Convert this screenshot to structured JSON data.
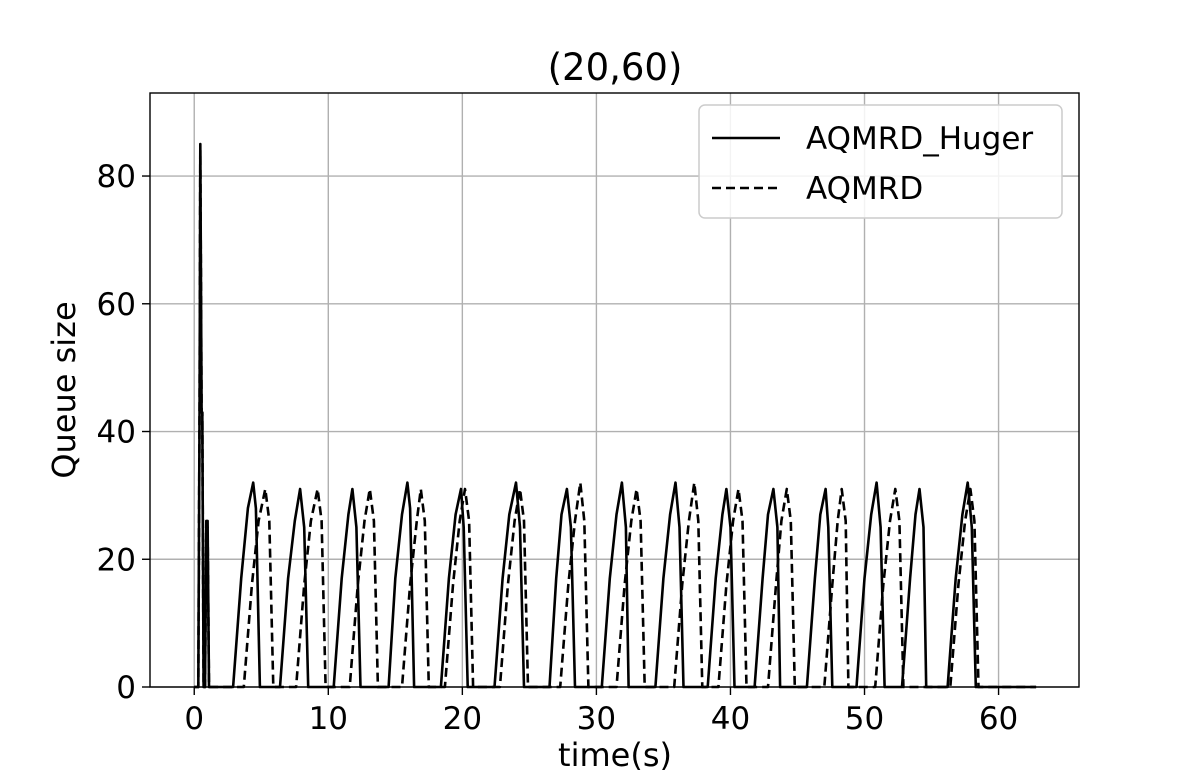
{
  "chart_data": {
    "type": "line",
    "title": "(20,60)",
    "xlabel": "time(s)",
    "ylabel": "Queue size",
    "xlim": [
      -3.3,
      66
    ],
    "ylim": [
      0,
      93
    ],
    "xticks": [
      0,
      10,
      20,
      30,
      40,
      50,
      60
    ],
    "yticks": [
      0,
      20,
      40,
      60,
      80
    ],
    "grid": true,
    "legend_position": "top-right",
    "series": [
      {
        "name": "AQMRD_Huger",
        "style": "solid",
        "color": "#000000",
        "x": [
          0,
          0.3,
          0.4,
          0.45,
          0.55,
          0.6,
          0.7,
          0.8,
          0.9,
          1.0,
          1.1,
          1.2,
          1.3,
          1.4,
          1.6,
          2.9,
          3.5,
          4.0,
          4.4,
          4.6,
          4.9,
          5.1,
          5.3,
          6.4,
          7.0,
          7.5,
          7.9,
          8.2,
          8.5,
          8.8,
          9.0,
          10.4,
          11.0,
          11.5,
          11.8,
          12.1,
          12.4,
          12.6,
          12.8,
          14.5,
          15.0,
          15.5,
          15.9,
          16.1,
          16.4,
          16.6,
          16.8,
          18.4,
          19.0,
          19.5,
          19.9,
          20.1,
          20.4,
          20.6,
          20.8,
          22.4,
          23.0,
          23.5,
          24.0,
          24.3,
          24.6,
          24.8,
          25.0,
          26.5,
          27.0,
          27.4,
          27.8,
          28.1,
          28.4,
          28.6,
          28.8,
          30.4,
          31.0,
          31.5,
          31.9,
          32.2,
          32.4,
          32.6,
          32.8,
          34.4,
          35.0,
          35.5,
          35.9,
          36.2,
          36.5,
          36.7,
          36.9,
          38.3,
          38.9,
          39.4,
          39.7,
          40.0,
          40.3,
          40.5,
          40.7,
          41.8,
          42.4,
          42.8,
          43.2,
          43.5,
          43.7,
          43.9,
          44.1,
          45.7,
          46.3,
          46.7,
          47.1,
          47.3,
          47.6,
          47.8,
          48.0,
          49.4,
          50.0,
          50.5,
          50.9,
          51.2,
          51.5,
          51.7,
          51.9,
          52.8,
          53.4,
          53.8,
          54.1,
          54.4,
          54.6,
          54.8,
          55.0,
          56.2,
          56.8,
          57.3,
          57.7,
          58.0,
          58.3,
          58.5,
          58.7,
          62.8
        ],
        "y": [
          0,
          0,
          45,
          85,
          43,
          43,
          0,
          0,
          26,
          26,
          0,
          0,
          0,
          0,
          0,
          0,
          17,
          28,
          32,
          28,
          0,
          0,
          0,
          0,
          17,
          26,
          31,
          25,
          0,
          0,
          0,
          0,
          17,
          27,
          31,
          25,
          0,
          0,
          0,
          0,
          17,
          27,
          32,
          28,
          0,
          0,
          0,
          0,
          17,
          27,
          31,
          25,
          0,
          0,
          0,
          0,
          17,
          27,
          32,
          25,
          0,
          0,
          0,
          0,
          17,
          27,
          31,
          25,
          0,
          0,
          0,
          0,
          17,
          27,
          32,
          25,
          0,
          0,
          0,
          0,
          17,
          27,
          32,
          25,
          0,
          0,
          0,
          0,
          17,
          27,
          31,
          25,
          0,
          0,
          0,
          0,
          17,
          27,
          31,
          25,
          0,
          0,
          0,
          0,
          17,
          27,
          31,
          25,
          0,
          0,
          0,
          0,
          17,
          27,
          32,
          25,
          0,
          0,
          0,
          0,
          17,
          27,
          31,
          25,
          0,
          0,
          0,
          0,
          17,
          27,
          32,
          25,
          0,
          0,
          0,
          0
        ]
      },
      {
        "name": "AQMRD",
        "style": "dashed",
        "color": "#000000",
        "x": [
          0,
          0.3,
          0.4,
          0.45,
          0.55,
          0.6,
          0.7,
          0.8,
          0.9,
          1.0,
          1.1,
          1.2,
          3.7,
          4.3,
          4.8,
          5.3,
          5.6,
          5.9,
          6.1,
          6.3,
          7.6,
          8.2,
          8.7,
          9.2,
          9.5,
          9.8,
          10.0,
          10.2,
          11.6,
          12.2,
          12.7,
          13.1,
          13.4,
          13.7,
          13.9,
          14.1,
          15.5,
          16.1,
          16.6,
          16.9,
          17.2,
          17.5,
          17.7,
          17.9,
          18.7,
          19.3,
          19.8,
          20.2,
          20.5,
          20.8,
          21.0,
          21.2,
          22.8,
          23.4,
          23.9,
          24.3,
          24.6,
          24.9,
          25.1,
          25.3,
          27.3,
          27.9,
          28.4,
          28.8,
          29.1,
          29.4,
          29.6,
          29.8,
          31.5,
          32.1,
          32.6,
          33.0,
          33.3,
          33.6,
          33.8,
          34.0,
          35.8,
          36.4,
          36.9,
          37.3,
          37.6,
          37.9,
          38.1,
          38.3,
          39.1,
          39.7,
          40.2,
          40.6,
          40.9,
          41.2,
          41.4,
          41.6,
          42.8,
          43.4,
          43.8,
          44.2,
          44.5,
          44.8,
          45.0,
          45.2,
          47.0,
          47.6,
          48.0,
          48.3,
          48.6,
          48.8,
          49.0,
          49.2,
          50.8,
          51.4,
          51.9,
          52.3,
          52.6,
          52.9,
          53.1,
          53.3,
          56.4,
          57.0,
          57.5,
          57.9,
          58.2,
          58.5,
          58.7,
          58.9,
          62.8
        ],
        "y": [
          0,
          0,
          45,
          84,
          43,
          43,
          0,
          0,
          25,
          25,
          0,
          0,
          0,
          16,
          26,
          31,
          26,
          0,
          0,
          0,
          0,
          16,
          26,
          31,
          26,
          0,
          0,
          0,
          0,
          16,
          26,
          31,
          26,
          0,
          0,
          0,
          0,
          16,
          26,
          31,
          26,
          0,
          0,
          0,
          0,
          16,
          26,
          31,
          26,
          0,
          0,
          0,
          0,
          16,
          26,
          31,
          26,
          0,
          0,
          0,
          0,
          16,
          26,
          32,
          26,
          0,
          0,
          0,
          0,
          16,
          26,
          31,
          26,
          0,
          0,
          0,
          0,
          16,
          26,
          32,
          26,
          0,
          0,
          0,
          0,
          16,
          26,
          31,
          26,
          0,
          0,
          0,
          0,
          16,
          26,
          31,
          26,
          0,
          0,
          0,
          0,
          16,
          26,
          31,
          26,
          0,
          0,
          0,
          0,
          16,
          26,
          31,
          26,
          0,
          0,
          0,
          0,
          16,
          26,
          31,
          26,
          0,
          0,
          0,
          0
        ]
      }
    ]
  }
}
